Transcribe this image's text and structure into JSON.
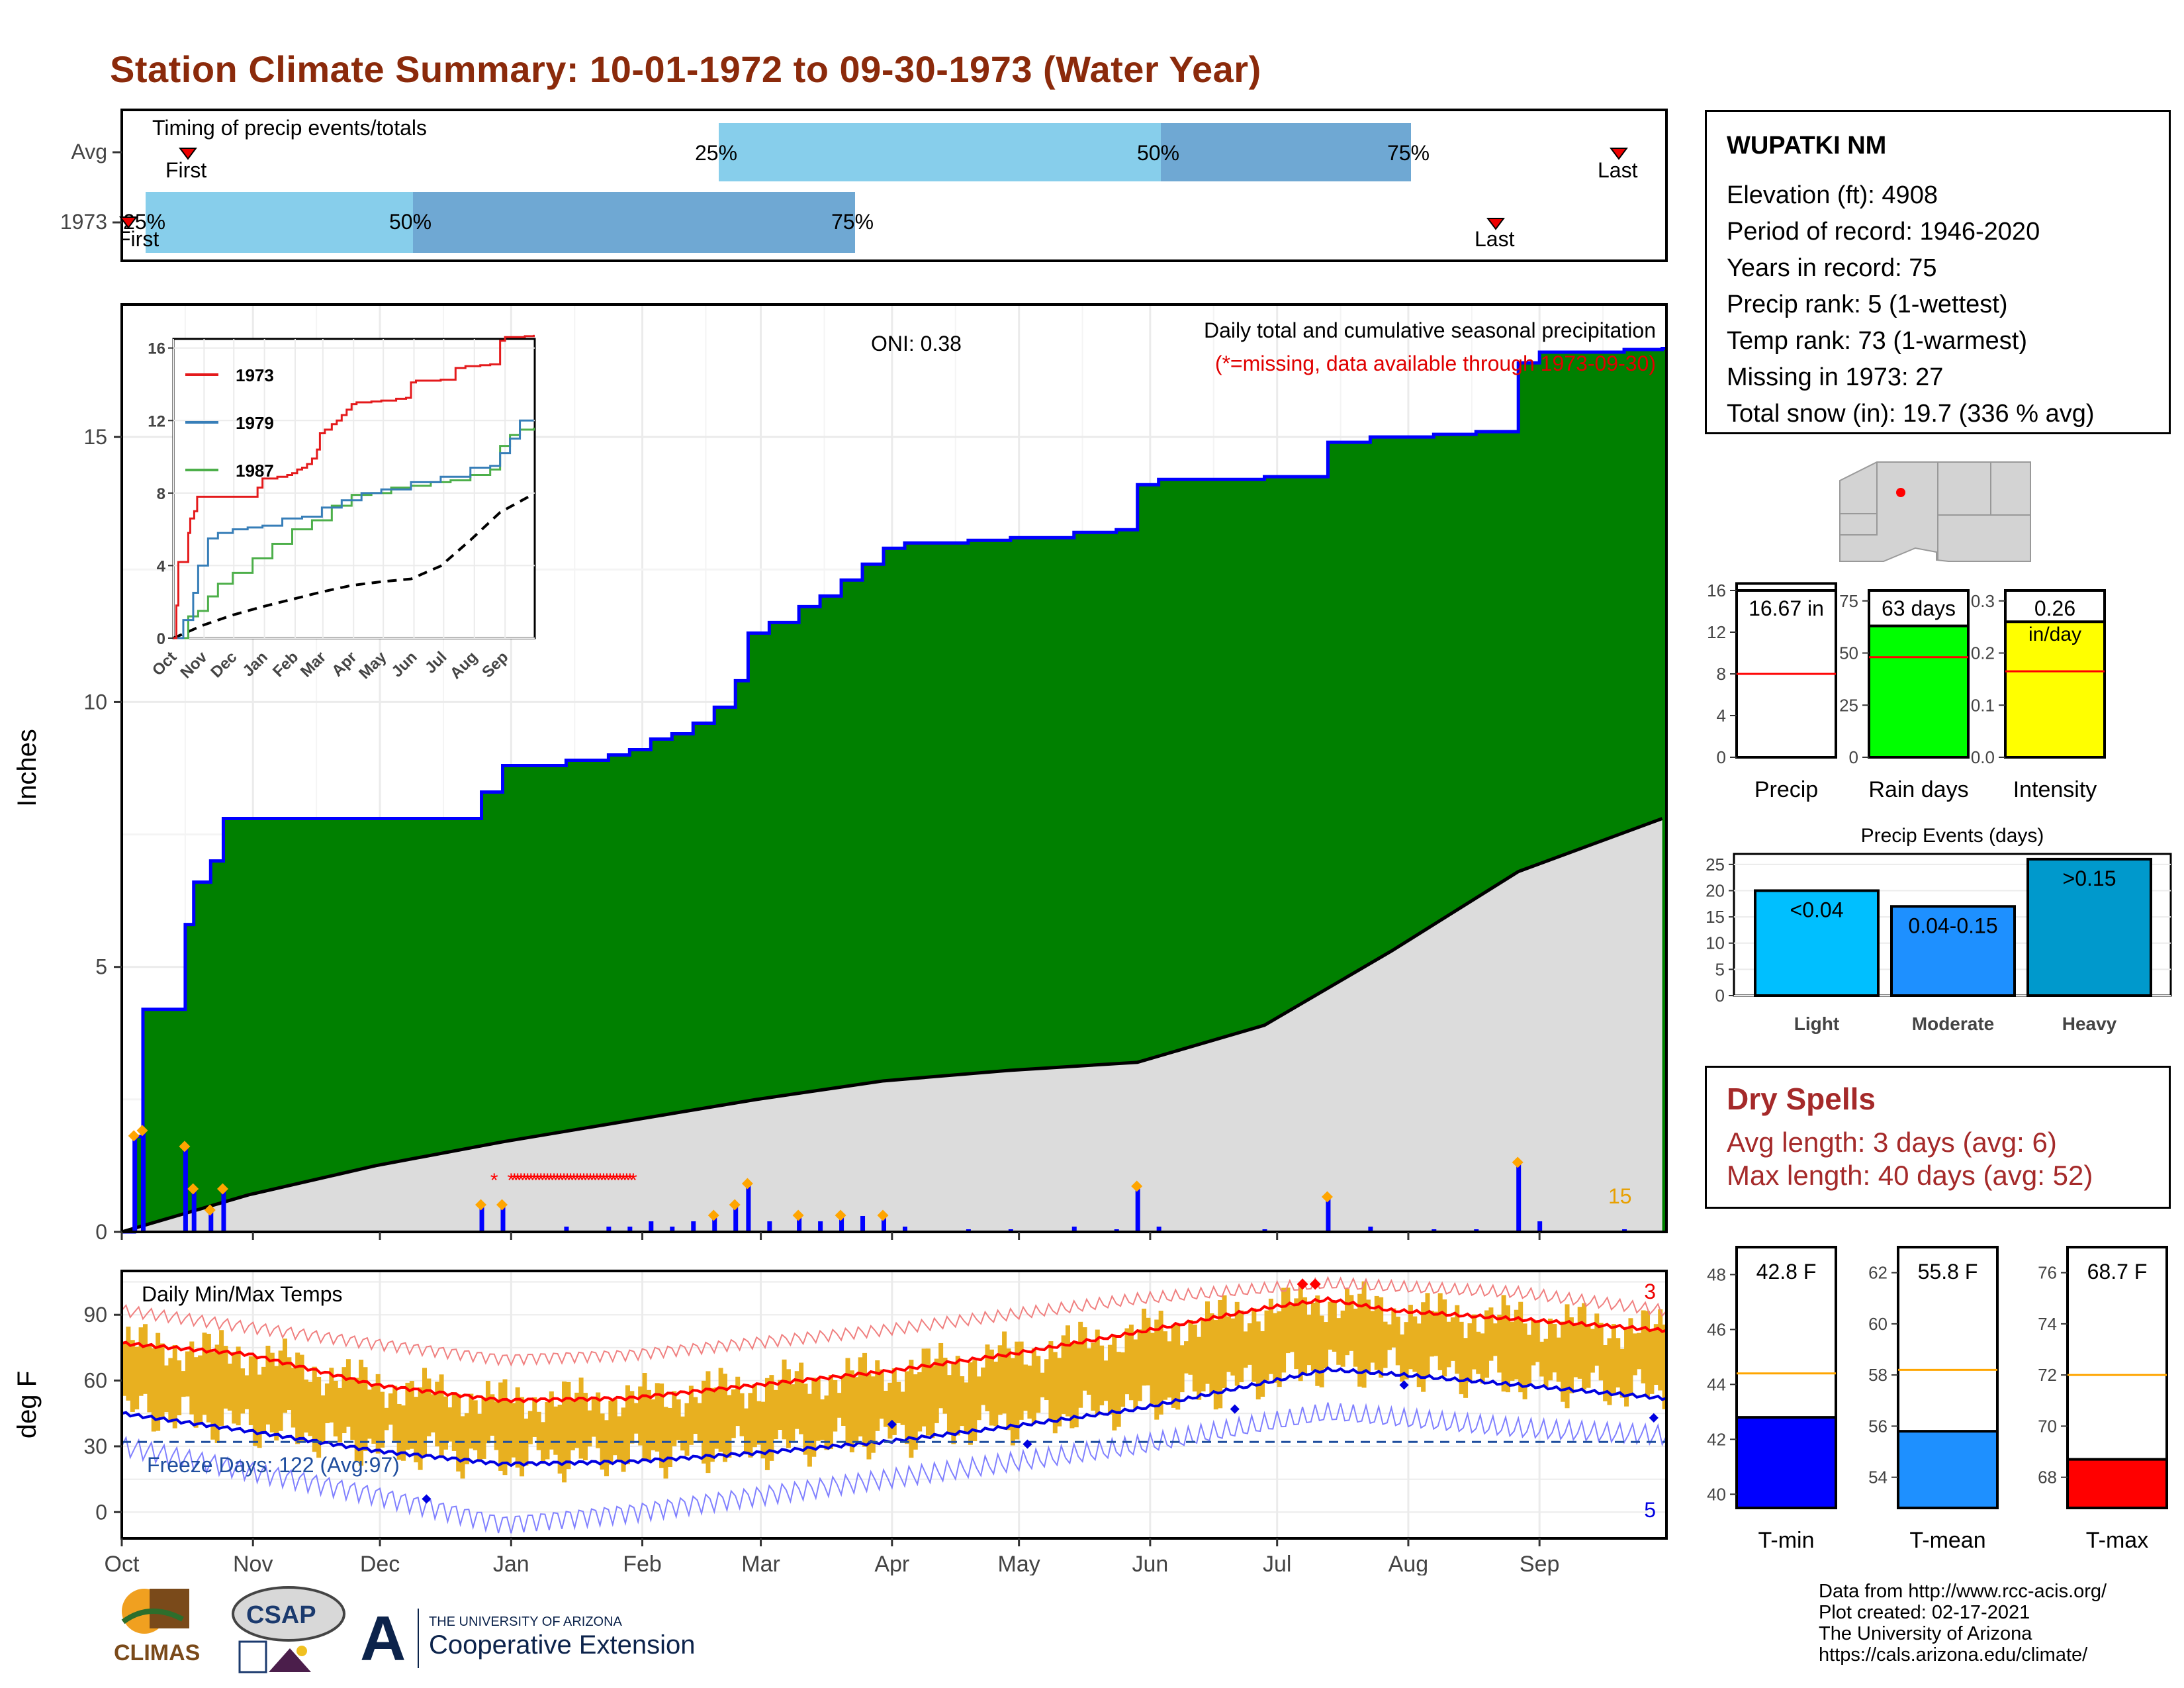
{
  "title": "Station Climate Summary: 10-01-1972 to 09-30-1973 (Water Year)",
  "timing": {
    "title": "Timing of precip events/totals",
    "rows": [
      {
        "label": "Avg",
        "first_label": "First",
        "last_label": "Last",
        "p25": "25%",
        "p50": "50%",
        "p75": "75%"
      },
      {
        "label": "1973",
        "first_label": "First",
        "last_label": "Last",
        "p25": "25%",
        "p50": "50%",
        "p75": "75%"
      }
    ]
  },
  "main_chart": {
    "ylabel": "Inches",
    "oni": "ONI: 0.38",
    "subtitle": "Daily total and cumulative seasonal precipitation",
    "missing_note": "(*=missing, data available through 1973-09-30)",
    "count_label": "15",
    "yticks": [
      "0",
      "5",
      "10",
      "15"
    ]
  },
  "inset": {
    "legend": [
      "1973",
      "1979",
      "1987"
    ],
    "yticks": [
      "0",
      "4",
      "8",
      "12",
      "16"
    ],
    "xticks": [
      "Oct",
      "Nov",
      "Dec",
      "Jan",
      "Feb",
      "Mar",
      "Apr",
      "May",
      "Jun",
      "Jul",
      "Aug",
      "Sep"
    ]
  },
  "temp_chart": {
    "title": "Daily Min/Max Temps",
    "ylabel": "deg F",
    "freeze": "Freeze Days: 122 (Avg:97)",
    "max_count": "3",
    "min_count": "5",
    "yticks": [
      "0",
      "30",
      "60",
      "90"
    ]
  },
  "months": [
    "Oct",
    "Nov",
    "Dec",
    "Jan",
    "Feb",
    "Mar",
    "Apr",
    "May",
    "Jun",
    "Jul",
    "Aug",
    "Sep"
  ],
  "station": {
    "name": "WUPATKI NM",
    "rows": [
      "Elevation (ft): 4908",
      "Period of record: 1946-2020",
      "Years in record: 75",
      "Precip rank: 5 (1-wettest)",
      "Temp rank: 73 (1-warmest)",
      "Missing in 1973: 27",
      "Total snow (in): 19.7 (336 % avg)"
    ]
  },
  "mini_bars": [
    {
      "label": "Precip",
      "value_label": "16.67 in",
      "ticks": [
        "0",
        "4",
        "8",
        "12",
        "16"
      ]
    },
    {
      "label": "Rain days",
      "value_label": "63 days",
      "ticks": [
        "0",
        "25",
        "50",
        "75"
      ]
    },
    {
      "label": "Intensity",
      "value_label": "0.26",
      "unit": "in/day",
      "ticks": [
        "0.0",
        "0.1",
        "0.2",
        "0.3"
      ]
    }
  ],
  "events": {
    "title": "Precip Events (days)",
    "ticks": [
      "0",
      "5",
      "10",
      "15",
      "20",
      "25"
    ]
  },
  "dry_spells": {
    "title": "Dry Spells",
    "avg": "Avg length: 3 days (avg: 6)",
    "max": "Max length: 40 days (avg: 52)"
  },
  "temp_bars": [
    {
      "label": "T-min",
      "value_label": "42.8 F",
      "ticks": [
        "40",
        "42",
        "44",
        "46",
        "48"
      ]
    },
    {
      "label": "T-mean",
      "value_label": "55.8 F",
      "ticks": [
        "54",
        "56",
        "58",
        "60",
        "62"
      ]
    },
    {
      "label": "T-max",
      "value_label": "68.7 F",
      "ticks": [
        "68",
        "70",
        "72",
        "74",
        "76"
      ]
    }
  ],
  "credits": [
    "Data from http://www.rcc-acis.org/",
    "Plot created: 02-17-2021",
    "The University of Arizona",
    "https://cals.arizona.edu/climate/"
  ],
  "logos": {
    "climas": "CLIMAS",
    "csap": "CSAP",
    "ua_small": "THE UNIVERSITY OF ARIZONA",
    "ua_big": "Cooperative Extension"
  },
  "colors": {
    "title": "#8b2a0b",
    "green": "#008000",
    "blue": "#0000ff",
    "grey_fill": "#dcdcdc",
    "light_blue": "#87ceeb",
    "mid_blue": "#6fa8d3",
    "orange": "#e8b020",
    "red": "#ff0000",
    "dry_red": "#a52a2a"
  },
  "chart_data": [
    {
      "type": "area",
      "title": "Daily total and cumulative seasonal precipitation",
      "ylabel": "Inches",
      "ylim": [
        0,
        17.5
      ],
      "x_unit": "day of water year",
      "series": [
        {
          "name": "1973",
          "x": [
            0,
            3,
            5,
            12,
            15,
            17,
            21,
            24,
            26,
            30,
            32,
            35,
            38,
            45,
            48,
            55,
            62,
            70,
            80,
            85,
            90,
            95,
            100,
            105,
            110,
            115,
            120,
            125,
            130,
            135,
            140,
            145,
            148,
            150,
            153,
            160,
            165,
            170,
            175,
            180,
            185,
            190,
            195,
            200,
            205,
            210,
            215,
            220,
            225,
            230,
            235,
            240,
            245,
            250,
            255,
            260,
            265,
            270,
            275,
            280,
            285,
            290,
            295,
            300,
            305,
            310,
            320,
            325,
            330,
            335,
            340,
            345,
            350,
            355,
            364
          ],
          "y": [
            0.0,
            1.8,
            4.2,
            4.2,
            5.8,
            6.6,
            7.0,
            7.8,
            7.8,
            7.8,
            7.8,
            7.8,
            7.8,
            7.8,
            7.8,
            7.8,
            7.8,
            7.8,
            7.8,
            8.3,
            8.8,
            8.8,
            8.8,
            8.9,
            8.9,
            9.0,
            9.1,
            9.3,
            9.4,
            9.6,
            9.9,
            10.4,
            11.3,
            11.3,
            11.5,
            11.8,
            12.0,
            12.3,
            12.6,
            12.9,
            13.0,
            13.0,
            13.0,
            13.05,
            13.05,
            13.1,
            13.1,
            13.1,
            13.2,
            13.2,
            13.25,
            14.1,
            14.2,
            14.2,
            14.2,
            14.2,
            14.2,
            14.25,
            14.25,
            14.25,
            14.9,
            14.9,
            15.0,
            15.0,
            15.0,
            15.05,
            15.1,
            15.1,
            16.4,
            16.6,
            16.6,
            16.6,
            16.6,
            16.65,
            16.67
          ]
        },
        {
          "name": "Avg",
          "x": [
            0,
            30,
            60,
            90,
            120,
            150,
            180,
            210,
            240,
            270,
            300,
            330,
            364
          ],
          "y": [
            0.0,
            0.7,
            1.25,
            1.7,
            2.1,
            2.5,
            2.85,
            3.05,
            3.2,
            3.9,
            5.3,
            6.8,
            7.8
          ]
        }
      ]
    },
    {
      "type": "bar",
      "title": "Precip Events (days)",
      "categories": [
        "Light",
        "Moderate",
        "Heavy"
      ],
      "values": [
        20,
        17,
        26
      ],
      "labels": [
        "<0.04",
        "0.04-0.15",
        ">0.15"
      ],
      "ylim": [
        0,
        27
      ]
    },
    {
      "type": "bar",
      "categories": [
        "Precip",
        "Rain days",
        "Intensity"
      ],
      "values": [
        16.67,
        63,
        0.26
      ],
      "averages": [
        8,
        48,
        0.165
      ],
      "ylims": [
        [
          0,
          16
        ],
        [
          0,
          80
        ],
        [
          0,
          0.32
        ]
      ]
    },
    {
      "type": "bar",
      "categories": [
        "T-min",
        "T-mean",
        "T-max"
      ],
      "values": [
        42.8,
        55.8,
        68.7
      ],
      "averages": [
        44.4,
        58.2,
        72.0
      ],
      "ylims": [
        [
          39.5,
          49
        ],
        [
          52.8,
          63
        ],
        [
          66.8,
          77
        ]
      ]
    },
    {
      "type": "line",
      "title": "Daily Min/Max Temps",
      "ylabel": "deg F",
      "ylim": [
        -12,
        110
      ],
      "series": [
        {
          "name": "Avg max",
          "x": [
            0,
            30,
            60,
            90,
            120,
            150,
            180,
            210,
            240,
            270,
            285,
            300,
            330,
            364
          ],
          "y": [
            77,
            72,
            58,
            51,
            52,
            58,
            64,
            72,
            82,
            93,
            97,
            92,
            88,
            83
          ]
        },
        {
          "name": "Avg min",
          "x": [
            0,
            30,
            60,
            90,
            120,
            150,
            180,
            210,
            240,
            270,
            285,
            300,
            330,
            364
          ],
          "y": [
            45,
            37,
            28,
            22,
            23,
            27,
            32,
            39,
            47,
            59,
            65,
            63,
            58,
            52
          ]
        },
        {
          "name": "Record max",
          "x": [
            0,
            60,
            90,
            120,
            180,
            240,
            285,
            330,
            364
          ],
          "y": [
            92,
            77,
            70,
            72,
            83,
            97,
            104,
            100,
            92
          ]
        },
        {
          "name": "Record min",
          "x": [
            0,
            60,
            90,
            120,
            180,
            240,
            285,
            330,
            364
          ],
          "y": [
            30,
            8,
            -5,
            0,
            15,
            30,
            45,
            38,
            35
          ]
        }
      ]
    }
  ]
}
